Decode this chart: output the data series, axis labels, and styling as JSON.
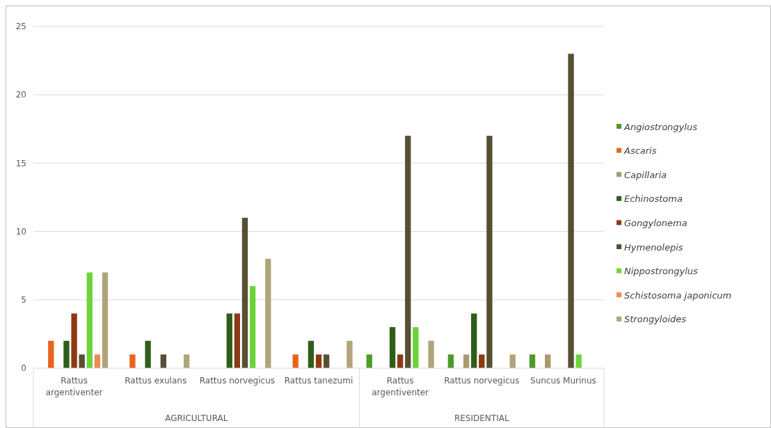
{
  "chart_data": {
    "type": "bar",
    "categories": [
      "Rattus argentiventer",
      "Rattus exulans",
      "Rattus norvegicus",
      "Rattus tanezumi",
      "Rattus argentiventer",
      "Rattus norvegicus",
      "Suncus Murinus"
    ],
    "series": [
      {
        "name": "Angiostrongylus",
        "color": "#4e9a2a",
        "values": [
          0,
          0,
          0,
          0,
          1,
          1,
          1
        ]
      },
      {
        "name": "Ascaris",
        "color": "#e8641c",
        "values": [
          2,
          1,
          0,
          1,
          0,
          0,
          0
        ]
      },
      {
        "name": "Capillaria",
        "color": "#a89a6e",
        "values": [
          0,
          0,
          0,
          0,
          0,
          1,
          1
        ]
      },
      {
        "name": "Echinostoma",
        "color": "#2e5e18",
        "values": [
          2,
          2,
          4,
          2,
          3,
          4,
          0
        ]
      },
      {
        "name": "Gongylonema",
        "color": "#8b3a12",
        "values": [
          4,
          0,
          4,
          1,
          1,
          1,
          0
        ]
      },
      {
        "name": "Hymenolepis",
        "color": "#574f33",
        "values": [
          1,
          1,
          11,
          1,
          17,
          17,
          23
        ]
      },
      {
        "name": "Nippostrongylus",
        "color": "#6cd43a",
        "values": [
          7,
          0,
          6,
          0,
          3,
          0,
          1
        ]
      },
      {
        "name": "Schistosoma japonicum",
        "color": "#f08a52",
        "values": [
          1,
          0,
          0,
          0,
          0,
          0,
          0
        ]
      },
      {
        "name": "Strongyloides",
        "color": "#b0a578",
        "values": [
          7,
          1,
          8,
          2,
          2,
          1,
          0
        ]
      }
    ],
    "ylim": [
      0,
      25
    ],
    "yticks": [
      0,
      5,
      10,
      15,
      20,
      25
    ],
    "grid": true,
    "legend": "right",
    "annotations": [
      "AGRICULTURAL",
      "RESIDENTIAL"
    ]
  }
}
